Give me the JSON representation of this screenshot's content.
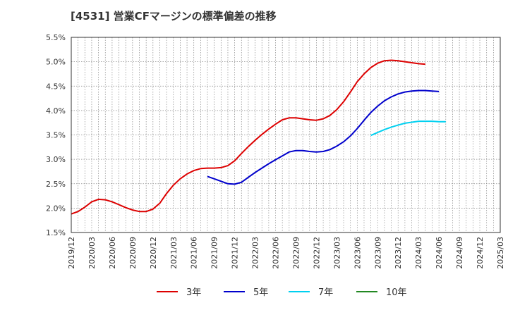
{
  "chart_data": {
    "type": "line",
    "title": "[4531]  営業CFマージンの標準偏差の推移",
    "xlabel": "",
    "ylabel": "",
    "ylim": [
      1.5,
      5.5
    ],
    "yticks": [
      "1.5%",
      "2.0%",
      "2.5%",
      "3.0%",
      "3.5%",
      "4.0%",
      "4.5%",
      "5.0%",
      "5.5%"
    ],
    "xticks": [
      "2019/12",
      "2020/03",
      "2020/06",
      "2020/09",
      "2020/12",
      "2021/03",
      "2021/06",
      "2021/09",
      "2021/12",
      "2022/03",
      "2022/06",
      "2022/09",
      "2022/12",
      "2023/03",
      "2023/06",
      "2023/09",
      "2023/12",
      "2024/03",
      "2024/06",
      "2024/09",
      "2024/12",
      "2025/03"
    ],
    "grid": true,
    "legend_position": "bottom",
    "series": [
      {
        "name": "3年",
        "color": "#dd0000",
        "start": "2019/12",
        "values": [
          1.88,
          1.93,
          2.02,
          2.13,
          2.18,
          2.17,
          2.13,
          2.07,
          2.01,
          1.96,
          1.93,
          1.93,
          1.98,
          2.1,
          2.3,
          2.47,
          2.6,
          2.7,
          2.77,
          2.81,
          2.82,
          2.82,
          2.83,
          2.87,
          2.97,
          3.12,
          3.26,
          3.39,
          3.51,
          3.62,
          3.72,
          3.81,
          3.85,
          3.85,
          3.83,
          3.81,
          3.8,
          3.83,
          3.9,
          4.02,
          4.18,
          4.38,
          4.59,
          4.75,
          4.88,
          4.97,
          5.02,
          5.03,
          5.02,
          5.0,
          4.98,
          4.96,
          4.95
        ]
      },
      {
        "name": "5年",
        "color": "#0000cc",
        "start": "2021/08",
        "values": [
          2.65,
          2.6,
          2.55,
          2.5,
          2.49,
          2.53,
          2.63,
          2.73,
          2.82,
          2.91,
          2.99,
          3.07,
          3.15,
          3.18,
          3.18,
          3.16,
          3.15,
          3.16,
          3.2,
          3.27,
          3.36,
          3.48,
          3.63,
          3.8,
          3.96,
          4.09,
          4.2,
          4.28,
          4.34,
          4.38,
          4.4,
          4.41,
          4.41,
          4.4,
          4.39
        ]
      },
      {
        "name": "7年",
        "color": "#00d0f0",
        "start": "2023/08",
        "values": [
          3.49,
          3.55,
          3.61,
          3.66,
          3.7,
          3.74,
          3.76,
          3.78,
          3.78,
          3.78,
          3.77,
          3.77
        ]
      },
      {
        "name": "10年",
        "color": "#228822",
        "start": "2023/08",
        "values": []
      }
    ]
  }
}
